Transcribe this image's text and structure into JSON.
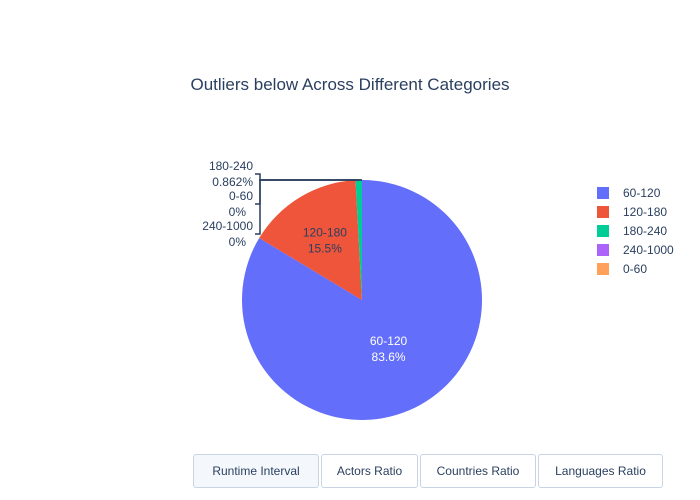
{
  "chart_data": {
    "type": "pie",
    "title": "Outliers below Across Different Categories",
    "slices": [
      {
        "label": "60-120",
        "percent": 83.6,
        "color": "#636efa"
      },
      {
        "label": "120-180",
        "percent": 15.5,
        "color": "#EF553B"
      },
      {
        "label": "180-240",
        "percent": 0.862,
        "color": "#00cc96"
      },
      {
        "label": "240-1000",
        "percent": 0,
        "color": "#ab63fa"
      },
      {
        "label": "0-60",
        "percent": 0,
        "color": "#FFA15A"
      }
    ],
    "slice_texts": {
      "60-120": "83.6%",
      "120-180": "15.5%",
      "180-240": "0.862%",
      "240-1000": "0%",
      "0-60": "0%"
    },
    "legend_position": "right"
  },
  "buttons": [
    {
      "label": "Runtime Interval",
      "active": true
    },
    {
      "label": "Actors Ratio",
      "active": false
    },
    {
      "label": "Countries Ratio",
      "active": false
    },
    {
      "label": "Languages Ratio",
      "active": false
    }
  ]
}
